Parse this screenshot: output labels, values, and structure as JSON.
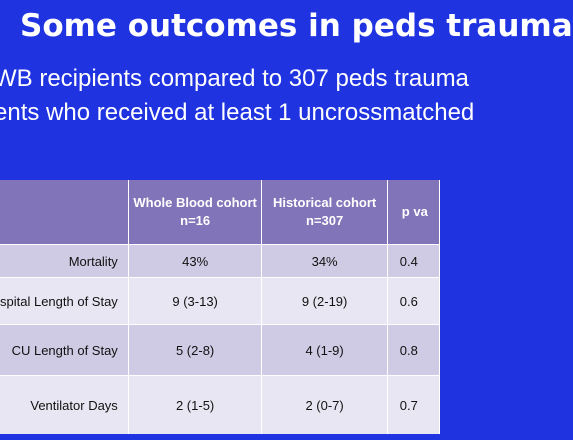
{
  "slide": {
    "title": "Some outcomes in peds trauma",
    "subtitle_lines": [
      "WB recipients compared to 307 peds trauma",
      "ents who received at least 1 uncrossmatched"
    ]
  },
  "table": {
    "headers": [
      "",
      "Whole Blood cohort\nn=16",
      "Historical cohort\nn=307",
      "p va"
    ],
    "rows": [
      {
        "label": "Mortality",
        "whole_blood": "43%",
        "historical": "34%",
        "p_value": "0.4"
      },
      {
        "label": "spital Length of Stay",
        "whole_blood": "9 (3-13)",
        "historical": "9 (2-19)",
        "p_value": "0.6"
      },
      {
        "label": "CU Length of Stay",
        "whole_blood": "5 (2-8)",
        "historical": "4 (1-9)",
        "p_value": "0.8"
      },
      {
        "label": "Ventilator Days",
        "whole_blood": "2 (1-5)",
        "historical": "2 (0-7)",
        "p_value": "0.7"
      }
    ]
  },
  "colors": {
    "background": "#1f33e0",
    "header_fill": "#8274b8",
    "row_fill_dark": "#cfcbe4",
    "row_fill_light": "#e8e6f2"
  }
}
